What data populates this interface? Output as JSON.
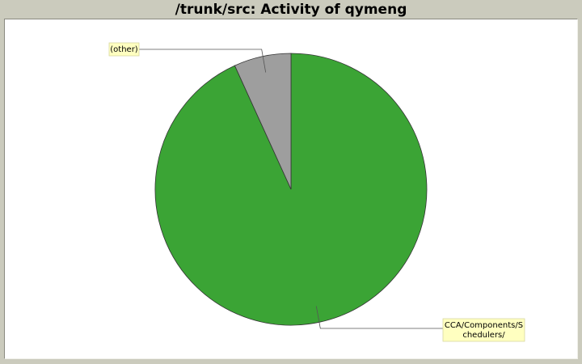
{
  "chart_data": {
    "type": "pie",
    "title": "/trunk/src: Activity of qymeng",
    "slices": [
      {
        "label": "CCA/Components/Schedulers/",
        "label_lines": [
          "CCA/Components/S",
          "chedulers/"
        ],
        "value": 93.2,
        "color": "#3ba435"
      },
      {
        "label": "(other)",
        "label_lines": [
          "(other)"
        ],
        "value": 6.8,
        "color": "#9e9e9e"
      }
    ],
    "start_angle_deg": 0,
    "direction": "clockwise",
    "legend": "none"
  }
}
